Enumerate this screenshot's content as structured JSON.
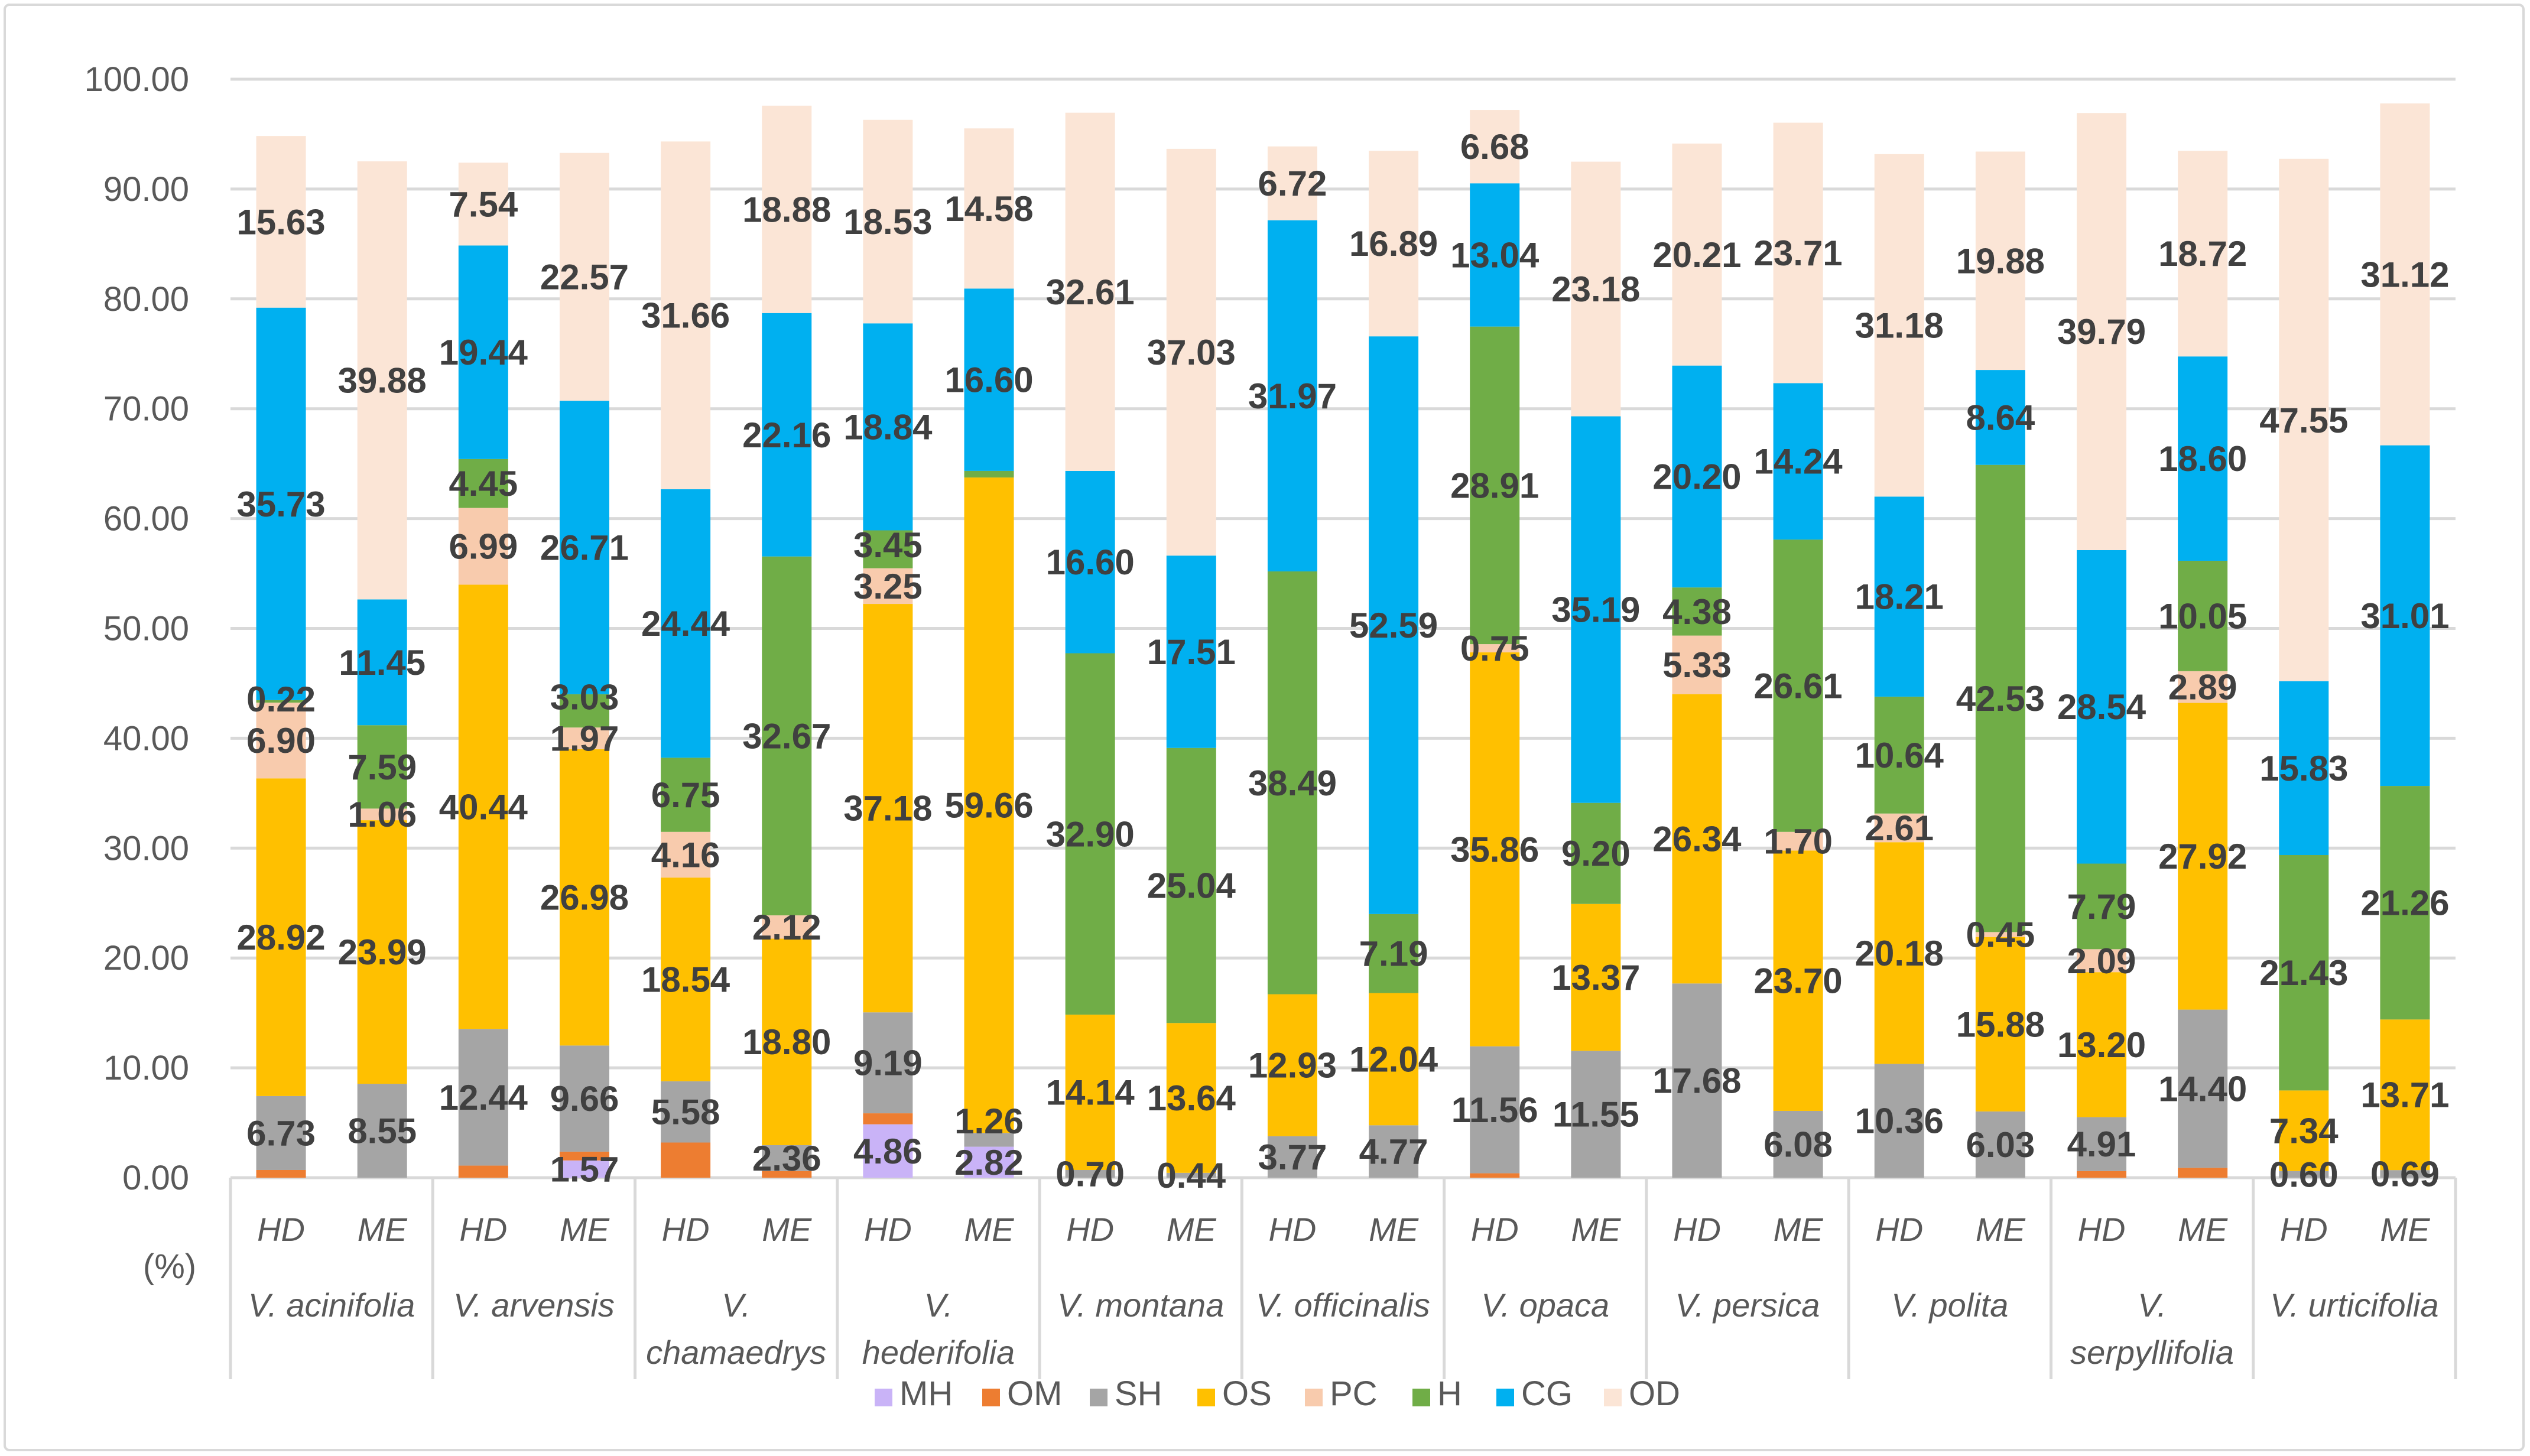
{
  "chart_data": {
    "type": "bar",
    "stacked": true,
    "title": "",
    "ylabel": "(%)",
    "ylim": [
      0,
      100
    ],
    "yticks": [
      "0.00",
      "10.00",
      "20.00",
      "30.00",
      "40.00",
      "50.00",
      "60.00",
      "70.00",
      "80.00",
      "90.00",
      "100.00"
    ],
    "grid": true,
    "legend_position": "bottom",
    "groups": [
      {
        "name": [
          "V. acinifolia"
        ],
        "bars": [
          "HD",
          "ME"
        ]
      },
      {
        "name": [
          "V. arvensis"
        ],
        "bars": [
          "HD",
          "ME"
        ]
      },
      {
        "name": [
          "V.",
          "chamaedrys"
        ],
        "bars": [
          "HD",
          "ME"
        ]
      },
      {
        "name": [
          "V.",
          "hederifolia"
        ],
        "bars": [
          "HD",
          "ME"
        ]
      },
      {
        "name": [
          "V. montana"
        ],
        "bars": [
          "HD",
          "ME"
        ]
      },
      {
        "name": [
          "V. officinalis"
        ],
        "bars": [
          "HD",
          "ME"
        ]
      },
      {
        "name": [
          "V. opaca"
        ],
        "bars": [
          "HD",
          "ME"
        ]
      },
      {
        "name": [
          "V. persica"
        ],
        "bars": [
          "HD",
          "ME"
        ]
      },
      {
        "name": [
          "V. polita"
        ],
        "bars": [
          "HD",
          "ME"
        ]
      },
      {
        "name": [
          "V.",
          "serpyllifolia"
        ],
        "bars": [
          "HD",
          "ME"
        ]
      },
      {
        "name": [
          "V. urticifolia"
        ],
        "bars": [
          "HD",
          "ME"
        ]
      }
    ],
    "series": [
      {
        "name": "MH",
        "color": "#C9B3F7",
        "values": [
          0,
          0,
          0,
          1.57,
          0,
          0,
          4.86,
          2.82,
          0,
          0,
          0,
          0,
          0,
          0,
          0,
          0,
          0,
          0,
          0,
          0,
          0,
          0
        ],
        "labels": [
          null,
          null,
          null,
          "1.57",
          null,
          null,
          "4.86",
          "2.82",
          null,
          null,
          null,
          null,
          null,
          null,
          null,
          null,
          null,
          null,
          null,
          null,
          null,
          null
        ]
      },
      {
        "name": "OM",
        "color": "#ED7D31",
        "values": [
          0.7,
          0,
          1.1,
          0.8,
          3.2,
          0.6,
          1.0,
          0,
          0,
          0,
          0,
          0,
          0.4,
          0,
          0,
          0,
          0,
          0,
          0.6,
          0.9,
          0,
          0
        ],
        "labels": [
          null,
          null,
          null,
          null,
          null,
          null,
          null,
          null,
          null,
          null,
          null,
          null,
          null,
          null,
          null,
          null,
          null,
          null,
          null,
          null,
          null,
          null
        ]
      },
      {
        "name": "SH",
        "color": "#A5A5A5",
        "values": [
          6.73,
          8.55,
          12.44,
          9.66,
          5.58,
          2.36,
          9.19,
          1.26,
          0.7,
          0.44,
          3.77,
          4.77,
          11.56,
          11.55,
          17.68,
          6.08,
          10.36,
          6.03,
          4.91,
          14.4,
          0.6,
          0.69
        ],
        "labels": [
          "6.73",
          "8.55",
          "12.44",
          "9.66",
          "5.58",
          "2.36",
          "9.19",
          "1.26",
          "0.70",
          "0.44",
          "3.77",
          "4.77",
          "11.56",
          "11.55",
          "17.68",
          "6.08",
          "10.36",
          "6.03",
          "4.91",
          "14.40",
          "0.60",
          "0.69"
        ]
      },
      {
        "name": "OS",
        "color": "#FFC000",
        "values": [
          28.92,
          23.99,
          40.44,
          26.98,
          18.54,
          18.8,
          37.18,
          59.66,
          14.14,
          13.64,
          12.93,
          12.04,
          35.86,
          13.37,
          26.34,
          23.7,
          20.18,
          15.88,
          13.2,
          27.92,
          7.34,
          13.71
        ],
        "labels": [
          "28.92",
          "23.99",
          "40.44",
          "26.98",
          "18.54",
          "18.80",
          "37.18",
          "59.66",
          "14.14",
          "13.64",
          "12.93",
          "12.04",
          "35.86",
          "13.37",
          "26.34",
          "23.70",
          "20.18",
          "15.88",
          "13.20",
          "27.92",
          "7.34",
          "13.71"
        ]
      },
      {
        "name": "PC",
        "color": "#F8CBAD",
        "values": [
          6.9,
          1.06,
          6.99,
          1.97,
          4.16,
          2.12,
          3.25,
          0,
          0,
          0,
          0,
          0,
          0.75,
          0,
          5.33,
          1.7,
          2.61,
          0.45,
          2.09,
          2.89,
          0,
          0
        ],
        "labels": [
          "6.90",
          "1.06",
          "6.99",
          "1.97",
          "4.16",
          "2.12",
          "3.25",
          null,
          null,
          null,
          null,
          null,
          "0.75",
          null,
          "5.33",
          "1.70",
          "2.61",
          "0.45",
          "2.09",
          "2.89",
          null,
          null
        ]
      },
      {
        "name": "H",
        "color": "#70AD47",
        "values": [
          0.22,
          7.59,
          4.45,
          3.03,
          6.75,
          32.67,
          3.45,
          0.6,
          32.9,
          25.04,
          38.49,
          7.19,
          28.91,
          9.2,
          4.38,
          26.61,
          10.64,
          42.53,
          7.79,
          10.05,
          21.43,
          21.26
        ],
        "labels": [
          "0.22",
          "7.59",
          "4.45",
          "3.03",
          "6.75",
          "32.67",
          "3.45",
          null,
          "32.90",
          "25.04",
          "38.49",
          "7.19",
          "28.91",
          "9.20",
          "4.38",
          "26.61",
          "10.64",
          "42.53",
          "7.79",
          "10.05",
          "21.43",
          "21.26"
        ]
      },
      {
        "name": "CG",
        "color": "#00B0F0",
        "values": [
          35.73,
          11.45,
          19.44,
          26.71,
          24.44,
          22.16,
          18.84,
          16.6,
          16.6,
          17.51,
          31.97,
          52.59,
          13.04,
          35.19,
          20.2,
          14.24,
          18.21,
          8.64,
          28.54,
          18.6,
          15.83,
          31.01
        ],
        "labels": [
          "35.73",
          "11.45",
          "19.44",
          "26.71",
          "24.44",
          "22.16",
          "18.84",
          "16.60",
          "16.60",
          "17.51",
          "31.97",
          "52.59",
          "13.04",
          "35.19",
          "20.20",
          "14.24",
          "18.21",
          "8.64",
          "28.54",
          "18.60",
          "15.83",
          "31.01"
        ]
      },
      {
        "name": "OD",
        "color": "#FBE5D6",
        "values": [
          15.63,
          39.88,
          7.54,
          22.57,
          31.66,
          18.88,
          18.53,
          14.58,
          32.61,
          37.03,
          6.72,
          16.89,
          6.68,
          23.18,
          20.21,
          23.71,
          31.18,
          19.88,
          39.79,
          18.72,
          47.55,
          31.12
        ],
        "labels": [
          "15.63",
          "39.88",
          "7.54",
          "22.57",
          "31.66",
          "18.88",
          "18.53",
          "14.58",
          "32.61",
          "37.03",
          "6.72",
          "16.89",
          "6.68",
          "23.18",
          "20.21",
          "23.71",
          "31.18",
          "19.88",
          "39.79",
          "18.72",
          "47.55",
          "31.12"
        ]
      }
    ]
  }
}
